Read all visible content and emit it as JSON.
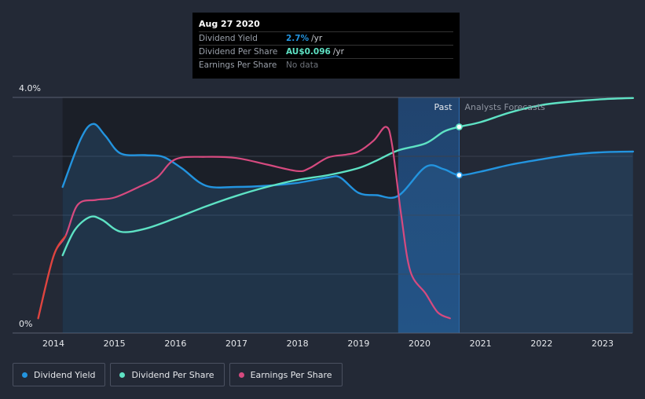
{
  "chart_data": {
    "type": "line",
    "x_domain": [
      2013.4,
      2023.5
    ],
    "ylim": [
      0,
      4.0
    ],
    "y_ticks": [
      {
        "value": 4.0,
        "label": "4.0%"
      },
      {
        "value": 0,
        "label": "0%"
      }
    ],
    "x_ticks": [
      "2014",
      "2015",
      "2016",
      "2017",
      "2018",
      "2019",
      "2020",
      "2021",
      "2022",
      "2023"
    ],
    "past_start": 2019.65,
    "past_end": 2020.65,
    "past_label": "Past",
    "forecast_label": "Analysts Forecasts",
    "series": [
      {
        "name": "Dividend Yield",
        "color": "#2394df",
        "area": true,
        "points": [
          [
            2014.15,
            2.48
          ],
          [
            2014.45,
            3.3
          ],
          [
            2014.65,
            3.55
          ],
          [
            2014.85,
            3.35
          ],
          [
            2015.1,
            3.05
          ],
          [
            2015.5,
            3.02
          ],
          [
            2015.8,
            2.99
          ],
          [
            2016.1,
            2.8
          ],
          [
            2016.5,
            2.5
          ],
          [
            2017.0,
            2.48
          ],
          [
            2017.5,
            2.5
          ],
          [
            2018.0,
            2.55
          ],
          [
            2018.5,
            2.64
          ],
          [
            2018.7,
            2.64
          ],
          [
            2019.0,
            2.38
          ],
          [
            2019.3,
            2.34
          ],
          [
            2019.65,
            2.33
          ],
          [
            2020.1,
            2.82
          ],
          [
            2020.4,
            2.78
          ],
          [
            2020.65,
            2.68
          ],
          [
            2021.0,
            2.74
          ],
          [
            2021.5,
            2.86
          ],
          [
            2022.0,
            2.95
          ],
          [
            2022.5,
            3.03
          ],
          [
            2023.0,
            3.07
          ],
          [
            2023.5,
            3.08
          ]
        ]
      },
      {
        "name": "Dividend Per Share",
        "color": "#5ee2c4",
        "area": false,
        "points": [
          [
            2014.15,
            1.32
          ],
          [
            2014.35,
            1.75
          ],
          [
            2014.6,
            1.97
          ],
          [
            2014.8,
            1.92
          ],
          [
            2015.1,
            1.72
          ],
          [
            2015.5,
            1.77
          ],
          [
            2016.0,
            1.95
          ],
          [
            2016.5,
            2.15
          ],
          [
            2017.0,
            2.33
          ],
          [
            2017.5,
            2.48
          ],
          [
            2018.0,
            2.6
          ],
          [
            2018.5,
            2.68
          ],
          [
            2019.0,
            2.8
          ],
          [
            2019.3,
            2.93
          ],
          [
            2019.65,
            3.1
          ],
          [
            2020.1,
            3.22
          ],
          [
            2020.4,
            3.42
          ],
          [
            2020.65,
            3.5
          ],
          [
            2021.0,
            3.58
          ],
          [
            2021.5,
            3.75
          ],
          [
            2022.0,
            3.87
          ],
          [
            2022.5,
            3.93
          ],
          [
            2023.0,
            3.97
          ],
          [
            2023.5,
            3.99
          ]
        ]
      },
      {
        "name": "Earnings Per Share",
        "color": "#d64a7f",
        "area": false,
        "points": [
          [
            2013.75,
            0.25
          ],
          [
            2014.0,
            1.3
          ],
          [
            2014.2,
            1.65
          ],
          [
            2014.4,
            2.18
          ],
          [
            2014.7,
            2.26
          ],
          [
            2015.0,
            2.3
          ],
          [
            2015.4,
            2.48
          ],
          [
            2015.7,
            2.64
          ],
          [
            2016.0,
            2.95
          ],
          [
            2016.5,
            2.99
          ],
          [
            2017.0,
            2.97
          ],
          [
            2017.5,
            2.86
          ],
          [
            2018.0,
            2.75
          ],
          [
            2018.2,
            2.8
          ],
          [
            2018.5,
            2.98
          ],
          [
            2018.8,
            3.03
          ],
          [
            2019.0,
            3.08
          ],
          [
            2019.25,
            3.27
          ],
          [
            2019.45,
            3.5
          ],
          [
            2019.55,
            3.2
          ],
          [
            2019.7,
            2.0
          ],
          [
            2019.85,
            1.05
          ],
          [
            2020.1,
            0.67
          ],
          [
            2020.3,
            0.35
          ],
          [
            2020.5,
            0.25
          ]
        ]
      }
    ],
    "markers": [
      {
        "series": "Dividend Per Share",
        "x": 2020.65,
        "y": 3.5
      },
      {
        "series": "Dividend Yield",
        "x": 2020.65,
        "y": 2.68
      }
    ]
  },
  "tooltip": {
    "date": "Aug 27 2020",
    "rows": [
      {
        "label": "Dividend Yield",
        "value": "2.7%",
        "unit": "/yr",
        "color": "#2394df"
      },
      {
        "label": "Dividend Per Share",
        "value": "AU$0.096",
        "unit": "/yr",
        "color": "#5ee2c4"
      },
      {
        "label": "Earnings Per Share",
        "value": "",
        "unit": "",
        "na": "No data"
      }
    ]
  },
  "legend": [
    {
      "label": "Dividend Yield",
      "color": "#2394df"
    },
    {
      "label": "Dividend Per Share",
      "color": "#5ee2c4"
    },
    {
      "label": "Earnings Per Share",
      "color": "#d64a7f"
    }
  ]
}
